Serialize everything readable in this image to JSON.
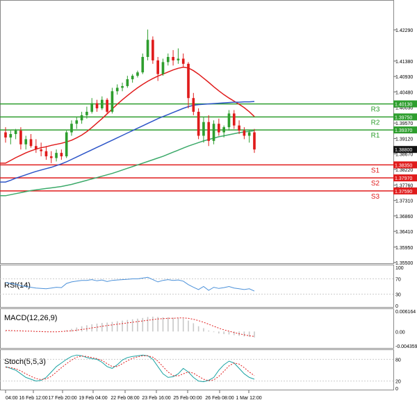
{
  "colors": {
    "bull": "#2e9e2e",
    "bear": "#e01b1b",
    "ma_fast": "#e01b1b",
    "ma_mid": "#2d55c8",
    "ma_slow": "#3caa6a",
    "resistance": "#2e9e2e",
    "support": "#e01b1b",
    "price_box": "#111111",
    "rsi_line": "#4a90d9",
    "macd_hist": "#c8c8c8",
    "macd_signal": "#e01b1b",
    "stoch_main": "#1aa3a3",
    "stoch_signal": "#e01b1b",
    "grid": "#cccccc"
  },
  "chart_data": [
    {
      "type": "candlestick",
      "panel": "main",
      "title": "",
      "grid": false,
      "ylim": [
        1.355,
        1.43
      ],
      "y_ticks": [
        "1.42290",
        "1.41380",
        "1.40930",
        "1.40480",
        "1.40030",
        "1.39570",
        "1.39120",
        "1.38670",
        "1.38220",
        "1.37760",
        "1.37310",
        "1.36860",
        "1.36410",
        "1.35950",
        "1.35500"
      ],
      "x_ticks": [
        "04:00",
        "16 Feb 12:00",
        "17 Feb 20:00",
        "19 Feb 04:00",
        "22 Feb 08:00",
        "23 Feb 16:00",
        "25 Feb 00:00",
        "26 Feb 08:00",
        "1 Mar 12:00"
      ],
      "current_price": "1.38800",
      "levels": [
        {
          "name": "R3",
          "value": 1.4013,
          "label": "1.40130",
          "kind": "resistance"
        },
        {
          "name": "R2",
          "value": 1.3975,
          "label": "1.39750",
          "kind": "resistance"
        },
        {
          "name": "R1",
          "value": 1.3937,
          "label": "1.39370",
          "kind": "resistance"
        },
        {
          "name": "S1",
          "value": 1.3835,
          "label": "1.38350",
          "kind": "support"
        },
        {
          "name": "S2",
          "value": 1.3797,
          "label": "1.37970",
          "kind": "support"
        },
        {
          "name": "S3",
          "value": 1.3759,
          "label": "1.37590",
          "kind": "support"
        }
      ],
      "ohlc": [
        [
          1.393,
          1.3945,
          1.39,
          1.3915
        ],
        [
          1.3915,
          1.3935,
          1.3895,
          1.3925
        ],
        [
          1.3925,
          1.394,
          1.391,
          1.3935
        ],
        [
          1.3935,
          1.3945,
          1.388,
          1.3895
        ],
        [
          1.3895,
          1.392,
          1.388,
          1.391
        ],
        [
          1.391,
          1.3925,
          1.3885,
          1.389
        ],
        [
          1.389,
          1.391,
          1.387,
          1.388
        ],
        [
          1.388,
          1.39,
          1.386,
          1.3875
        ],
        [
          1.3875,
          1.389,
          1.385,
          1.386
        ],
        [
          1.386,
          1.3875,
          1.384,
          1.3855
        ],
        [
          1.3855,
          1.388,
          1.3845,
          1.387
        ],
        [
          1.387,
          1.388,
          1.385,
          1.386
        ],
        [
          1.386,
          1.3935,
          1.3855,
          1.393
        ],
        [
          1.393,
          1.3965,
          1.392,
          1.3955
        ],
        [
          1.3955,
          1.3975,
          1.394,
          1.3965
        ],
        [
          1.3965,
          1.399,
          1.3955,
          1.398
        ],
        [
          1.398,
          1.4005,
          1.397,
          1.399
        ],
        [
          1.399,
          1.403,
          1.3985,
          1.4015
        ],
        [
          1.4015,
          1.4025,
          1.399,
          1.4
        ],
        [
          1.4,
          1.4035,
          1.3995,
          1.4025
        ],
        [
          1.4025,
          1.403,
          1.3985,
          1.399
        ],
        [
          1.399,
          1.406,
          1.3985,
          1.405
        ],
        [
          1.405,
          1.407,
          1.404,
          1.406
        ],
        [
          1.406,
          1.4075,
          1.405,
          1.4065
        ],
        [
          1.4065,
          1.4095,
          1.406,
          1.4085
        ],
        [
          1.4085,
          1.41,
          1.4075,
          1.4095
        ],
        [
          1.4095,
          1.411,
          1.409,
          1.4105
        ],
        [
          1.4105,
          1.416,
          1.41,
          1.415
        ],
        [
          1.415,
          1.423,
          1.414,
          1.42
        ],
        [
          1.42,
          1.421,
          1.413,
          1.414
        ],
        [
          1.414,
          1.415,
          1.408,
          1.41
        ],
        [
          1.41,
          1.4145,
          1.4095,
          1.4135
        ],
        [
          1.4135,
          1.416,
          1.4125,
          1.415
        ],
        [
          1.415,
          1.417,
          1.4125,
          1.414
        ],
        [
          1.414,
          1.4175,
          1.413,
          1.4145
        ],
        [
          1.4145,
          1.416,
          1.412,
          1.413
        ],
        [
          1.413,
          1.4135,
          1.4,
          1.403
        ],
        [
          1.403,
          1.4045,
          1.398,
          1.399
        ],
        [
          1.399,
          1.4,
          1.391,
          1.392
        ],
        [
          1.392,
          1.3975,
          1.39,
          1.396
        ],
        [
          1.396,
          1.398,
          1.389,
          1.3905
        ],
        [
          1.3905,
          1.3965,
          1.3895,
          1.3955
        ],
        [
          1.3955,
          1.397,
          1.392,
          1.393
        ],
        [
          1.393,
          1.395,
          1.3915,
          1.3945
        ],
        [
          1.3945,
          1.3995,
          1.3935,
          1.3985
        ],
        [
          1.3985,
          1.3995,
          1.394,
          1.395
        ],
        [
          1.395,
          1.3965,
          1.3925,
          1.3935
        ],
        [
          1.3935,
          1.3945,
          1.391,
          1.392
        ],
        [
          1.392,
          1.3935,
          1.39,
          1.393
        ],
        [
          1.393,
          1.394,
          1.387,
          1.388
        ]
      ],
      "series": [
        {
          "name": "",
          "role": "ma_fast",
          "values": [
            1.384,
            1.3848,
            1.3856,
            1.3863,
            1.387,
            1.3876,
            1.3881,
            1.3885,
            1.3888,
            1.3892,
            1.3895,
            1.3898,
            1.3902,
            1.3907,
            1.3914,
            1.3922,
            1.3932,
            1.3944,
            1.3957,
            1.397,
            1.3984,
            1.3998,
            1.4012,
            1.4025,
            1.4037,
            1.4049,
            1.406,
            1.407,
            1.4079,
            1.4087,
            1.4094,
            1.41,
            1.4106,
            1.4112,
            1.4117,
            1.412,
            1.4118,
            1.411,
            1.41,
            1.4088,
            1.4076,
            1.4063,
            1.4051,
            1.404,
            1.403,
            1.4021,
            1.4012,
            1.4002,
            1.399,
            1.3976
          ]
        },
        {
          "name": "",
          "role": "ma_mid",
          "values": [
            1.3785,
            1.379,
            1.3796,
            1.3801,
            1.3806,
            1.3811,
            1.3816,
            1.382,
            1.3824,
            1.3828,
            1.3833,
            1.3838,
            1.3844,
            1.3851,
            1.3858,
            1.3865,
            1.3872,
            1.3879,
            1.3886,
            1.3893,
            1.39,
            1.3907,
            1.3914,
            1.3921,
            1.3928,
            1.3935,
            1.3942,
            1.3949,
            1.3956,
            1.3963,
            1.397,
            1.3976,
            1.3982,
            1.3988,
            1.3994,
            1.4,
            1.4005,
            1.4009,
            1.4011,
            1.4012,
            1.4013,
            1.4014,
            1.4015,
            1.4016,
            1.4017,
            1.4018,
            1.4018,
            1.4019,
            1.4019,
            1.402
          ]
        },
        {
          "name": "",
          "role": "ma_slow",
          "values": [
            1.3745,
            1.3748,
            1.3751,
            1.3754,
            1.3757,
            1.376,
            1.3762,
            1.3764,
            1.3766,
            1.3768,
            1.377,
            1.3772,
            1.3775,
            1.3778,
            1.3782,
            1.3786,
            1.379,
            1.3794,
            1.3798,
            1.3802,
            1.3806,
            1.381,
            1.3815,
            1.382,
            1.3825,
            1.383,
            1.3835,
            1.384,
            1.3845,
            1.385,
            1.3855,
            1.386,
            1.3866,
            1.3872,
            1.3878,
            1.3884,
            1.389,
            1.3895,
            1.39,
            1.3905,
            1.3909,
            1.3913,
            1.3917,
            1.392,
            1.3923,
            1.3926,
            1.3929,
            1.3931,
            1.3933,
            1.3935
          ]
        }
      ]
    },
    {
      "type": "line",
      "panel": "rsi",
      "title": "RSI(14)",
      "ylim": [
        0,
        100
      ],
      "y_ticks": [
        "100",
        "70",
        "30",
        "0"
      ],
      "series": [
        {
          "name": "",
          "values": [
            60,
            58,
            56,
            52,
            50,
            48,
            46,
            45,
            44,
            46,
            48,
            47,
            58,
            62,
            64,
            66,
            66,
            68,
            65,
            67,
            63,
            66,
            67,
            68,
            69,
            70,
            70,
            72,
            74,
            68,
            62,
            66,
            68,
            66,
            67,
            64,
            55,
            48,
            42,
            50,
            40,
            48,
            45,
            47,
            50,
            46,
            44,
            42,
            44,
            38
          ]
        }
      ]
    },
    {
      "type": "bar",
      "panel": "macd",
      "title": "MACD(12,26,9)",
      "ylim": [
        -0.004359,
        0.006164
      ],
      "y_ticks": [
        "0.006164",
        "0.00",
        "-0.004359"
      ],
      "series": [
        {
          "name": "",
          "role": "histogram",
          "values": [
            0.0002,
            0.0002,
            0.0001,
            0.0001,
            0.0,
            0.0,
            -0.0001,
            -0.0001,
            -0.0001,
            -0.0001,
            0.0,
            0.0001,
            0.0004,
            0.0008,
            0.0012,
            0.0016,
            0.0019,
            0.0022,
            0.0024,
            0.0026,
            0.0027,
            0.0029,
            0.0031,
            0.0033,
            0.0035,
            0.0037,
            0.0039,
            0.0041,
            0.0044,
            0.0045,
            0.0044,
            0.0043,
            0.0043,
            0.0042,
            0.0041,
            0.0039,
            0.0033,
            0.0025,
            0.0016,
            0.001,
            0.0003,
            -0.0002,
            -0.0006,
            -0.0008,
            -0.0009,
            -0.0011,
            -0.0013,
            -0.0015,
            -0.0016,
            -0.0018
          ]
        },
        {
          "name": "",
          "role": "signal",
          "values": [
            0.0003,
            0.0003,
            0.0002,
            0.0002,
            0.0001,
            0.0001,
            0.0,
            0.0,
            -0.0001,
            -0.0001,
            -0.0001,
            0.0,
            0.0001,
            0.0002,
            0.0004,
            0.0006,
            0.0008,
            0.0011,
            0.0013,
            0.0016,
            0.0018,
            0.002,
            0.0022,
            0.0024,
            0.0026,
            0.0028,
            0.003,
            0.0032,
            0.0034,
            0.0036,
            0.0038,
            0.0039,
            0.004,
            0.004,
            0.0041,
            0.0041,
            0.004,
            0.0037,
            0.0033,
            0.0028,
            0.0022,
            0.0016,
            0.001,
            0.0005,
            0.0001,
            -0.0003,
            -0.0007,
            -0.001,
            -0.0013,
            -0.0015
          ]
        }
      ]
    },
    {
      "type": "line",
      "panel": "stoch",
      "title": "Stoch(5,5,3)",
      "ylim": [
        0,
        100
      ],
      "y_ticks": [
        "80",
        "20",
        "0"
      ],
      "series": [
        {
          "name": "",
          "role": "main",
          "values": [
            60,
            55,
            50,
            40,
            30,
            25,
            20,
            22,
            30,
            45,
            60,
            70,
            80,
            88,
            92,
            90,
            85,
            82,
            80,
            72,
            60,
            55,
            65,
            78,
            85,
            88,
            90,
            92,
            90,
            80,
            60,
            40,
            30,
            32,
            40,
            55,
            45,
            30,
            20,
            18,
            22,
            30,
            50,
            65,
            75,
            70,
            55,
            40,
            30,
            25
          ]
        },
        {
          "name": "",
          "role": "signal",
          "values": [
            58,
            57,
            54,
            48,
            40,
            33,
            27,
            24,
            26,
            33,
            45,
            57,
            68,
            78,
            86,
            89,
            88,
            85,
            82,
            77,
            68,
            60,
            60,
            68,
            76,
            83,
            87,
            90,
            90,
            86,
            75,
            60,
            45,
            35,
            34,
            40,
            45,
            42,
            33,
            25,
            21,
            23,
            33,
            47,
            62,
            70,
            67,
            57,
            45,
            35
          ]
        }
      ]
    }
  ]
}
